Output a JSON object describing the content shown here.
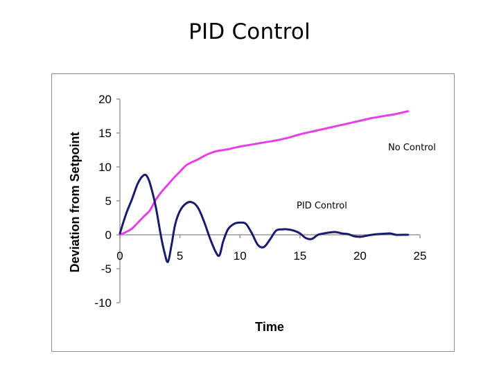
{
  "page": {
    "title": "PID Control"
  },
  "chart_data": {
    "type": "line",
    "xlabel": "Time",
    "ylabel": "Deviation from Setpoint",
    "xlim": [
      0,
      25
    ],
    "ylim": [
      -10,
      20
    ],
    "xticks": [
      0,
      5,
      10,
      15,
      20,
      25
    ],
    "yticks": [
      20,
      15,
      10,
      5,
      0,
      -5,
      -10
    ],
    "grid": false,
    "series": [
      {
        "name": "No Control",
        "color": "#e83ee8",
        "x": [
          0,
          0.5,
          1,
          1.5,
          2,
          2.5,
          3,
          3.5,
          4,
          4.5,
          5,
          5.5,
          6,
          6.5,
          7,
          7.5,
          8,
          9,
          10,
          11,
          12,
          13,
          14,
          15,
          16,
          17,
          18,
          19,
          20,
          21,
          22,
          23,
          24
        ],
        "y": [
          0,
          0.4,
          0.9,
          1.8,
          2.7,
          3.6,
          5.2,
          6.4,
          7.4,
          8.4,
          9.3,
          10.2,
          10.7,
          11.1,
          11.6,
          12.0,
          12.3,
          12.6,
          13.0,
          13.3,
          13.6,
          13.9,
          14.3,
          14.8,
          15.2,
          15.6,
          16.0,
          16.4,
          16.8,
          17.2,
          17.5,
          17.8,
          18.2
        ]
      },
      {
        "name": "PID Control",
        "color": "#1a1a6e",
        "x": [
          0,
          0.5,
          1,
          1.5,
          2,
          2.3,
          2.6,
          3,
          3.4,
          3.7,
          4,
          4.3,
          4.6,
          5,
          5.5,
          6,
          6.5,
          7,
          7.5,
          8,
          8.3,
          8.6,
          9,
          9.5,
          10,
          10.5,
          11,
          11.5,
          12,
          12.5,
          13,
          13.5,
          14,
          14.5,
          15,
          15.5,
          16,
          16.5,
          17,
          17.5,
          18,
          18.5,
          19,
          19.5,
          20,
          20.5,
          21,
          21.5,
          22,
          22.5,
          23,
          23.5,
          24
        ],
        "y": [
          0.2,
          3.0,
          5.2,
          7.6,
          8.8,
          8.5,
          7.0,
          4.0,
          0.0,
          -2.5,
          -4.0,
          -1.5,
          1.5,
          3.5,
          4.6,
          4.8,
          4.0,
          2.0,
          -0.5,
          -2.6,
          -3.0,
          -1.0,
          0.8,
          1.6,
          1.8,
          1.6,
          0.2,
          -1.5,
          -1.8,
          -0.7,
          0.6,
          0.8,
          0.8,
          0.6,
          0.2,
          -0.5,
          -0.6,
          0.0,
          0.2,
          0.35,
          0.4,
          0.2,
          0.1,
          -0.2,
          -0.3,
          -0.15,
          0.0,
          0.1,
          0.15,
          0.2,
          0.0,
          0.0,
          0.0
        ]
      }
    ],
    "annotations": [
      "No Control",
      "PID Control"
    ]
  }
}
